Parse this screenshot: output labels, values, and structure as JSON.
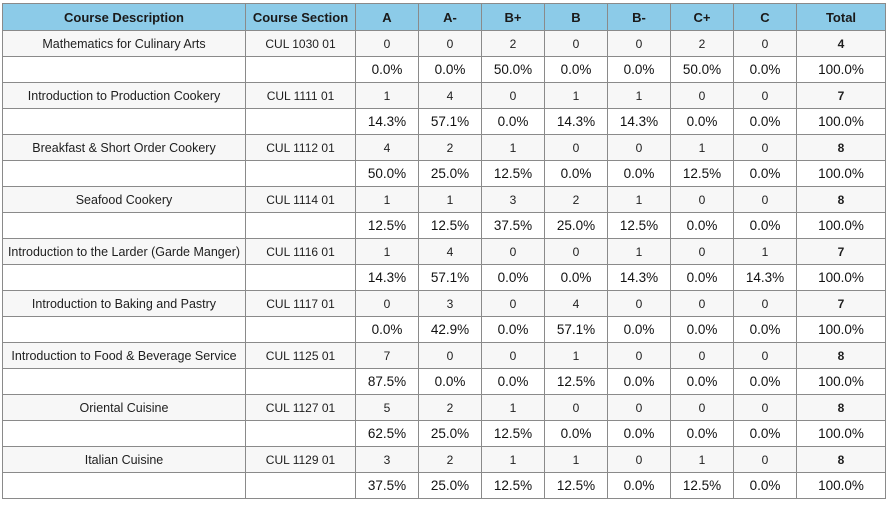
{
  "headers": [
    "Course Description",
    "Course Section",
    "A",
    "A-",
    "B+",
    "B",
    "B-",
    "C+",
    "C",
    "Total"
  ],
  "courses": [
    {
      "description": "Mathematics for Culinary Arts",
      "section": "CUL 1030 01",
      "counts": [
        "0",
        "0",
        "2",
        "0",
        "0",
        "2",
        "0"
      ],
      "total": "4",
      "percents": [
        "0.0%",
        "0.0%",
        "50.0%",
        "0.0%",
        "0.0%",
        "50.0%",
        "0.0%"
      ],
      "total_percent": "100.0%"
    },
    {
      "description": "Introduction to Production Cookery",
      "section": "CUL 1111 01",
      "counts": [
        "1",
        "4",
        "0",
        "1",
        "1",
        "0",
        "0"
      ],
      "total": "7",
      "percents": [
        "14.3%",
        "57.1%",
        "0.0%",
        "14.3%",
        "14.3%",
        "0.0%",
        "0.0%"
      ],
      "total_percent": "100.0%"
    },
    {
      "description": "Breakfast & Short Order Cookery",
      "section": "CUL 1112 01",
      "counts": [
        "4",
        "2",
        "1",
        "0",
        "0",
        "1",
        "0"
      ],
      "total": "8",
      "percents": [
        "50.0%",
        "25.0%",
        "12.5%",
        "0.0%",
        "0.0%",
        "12.5%",
        "0.0%"
      ],
      "total_percent": "100.0%"
    },
    {
      "description": "Seafood Cookery",
      "section": "CUL 1114 01",
      "counts": [
        "1",
        "1",
        "3",
        "2",
        "1",
        "0",
        "0"
      ],
      "total": "8",
      "percents": [
        "12.5%",
        "12.5%",
        "37.5%",
        "25.0%",
        "12.5%",
        "0.0%",
        "0.0%"
      ],
      "total_percent": "100.0%"
    },
    {
      "description": "Introduction to the Larder (Garde Manger)",
      "section": "CUL 1116 01",
      "counts": [
        "1",
        "4",
        "0",
        "0",
        "1",
        "0",
        "1"
      ],
      "total": "7",
      "percents": [
        "14.3%",
        "57.1%",
        "0.0%",
        "0.0%",
        "14.3%",
        "0.0%",
        "14.3%"
      ],
      "total_percent": "100.0%"
    },
    {
      "description": "Introduction to Baking and Pastry",
      "section": "CUL 1117 01",
      "counts": [
        "0",
        "3",
        "0",
        "4",
        "0",
        "0",
        "0"
      ],
      "total": "7",
      "percents": [
        "0.0%",
        "42.9%",
        "0.0%",
        "57.1%",
        "0.0%",
        "0.0%",
        "0.0%"
      ],
      "total_percent": "100.0%"
    },
    {
      "description": "Introduction  to Food & Beverage Service",
      "section": "CUL 1125 01",
      "counts": [
        "7",
        "0",
        "0",
        "1",
        "0",
        "0",
        "0"
      ],
      "total": "8",
      "percents": [
        "87.5%",
        "0.0%",
        "0.0%",
        "12.5%",
        "0.0%",
        "0.0%",
        "0.0%"
      ],
      "total_percent": "100.0%"
    },
    {
      "description": "Oriental Cuisine",
      "section": "CUL 1127 01",
      "counts": [
        "5",
        "2",
        "1",
        "0",
        "0",
        "0",
        "0"
      ],
      "total": "8",
      "percents": [
        "62.5%",
        "25.0%",
        "12.5%",
        "0.0%",
        "0.0%",
        "0.0%",
        "0.0%"
      ],
      "total_percent": "100.0%"
    },
    {
      "description": "Italian Cuisine",
      "section": "CUL 1129 01",
      "counts": [
        "3",
        "2",
        "1",
        "1",
        "0",
        "1",
        "0"
      ],
      "total": "8",
      "percents": [
        "37.5%",
        "25.0%",
        "12.5%",
        "12.5%",
        "0.0%",
        "12.5%",
        "0.0%"
      ],
      "total_percent": "100.0%"
    }
  ],
  "colors": {
    "header_background": "#8ccbe8",
    "count_row_background": "#f7f7f7",
    "grid_line": "#8a8a8a"
  }
}
